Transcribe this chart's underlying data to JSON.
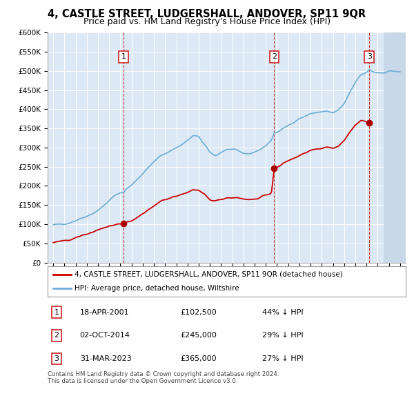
{
  "title": "4, CASTLE STREET, LUDGERSHALL, ANDOVER, SP11 9QR",
  "subtitle": "Price paid vs. HM Land Registry's House Price Index (HPI)",
  "title_fontsize": 10.5,
  "subtitle_fontsize": 9,
  "background_color": "#ffffff",
  "plot_bg_color": "#dce9f5",
  "grid_color": "#ffffff",
  "ylim": [
    0,
    600000
  ],
  "yticks": [
    0,
    50000,
    100000,
    150000,
    200000,
    250000,
    300000,
    350000,
    400000,
    450000,
    500000,
    550000,
    600000
  ],
  "hpi_line_color": "#6aadd5",
  "price_line_color": "#cc0000",
  "sale_marker_color": "#aa0000",
  "vline_color": "#cc2222",
  "legend_entries": [
    "4, CASTLE STREET, LUDGERSHALL, ANDOVER, SP11 9QR (detached house)",
    "HPI: Average price, detached house, Wiltshire"
  ],
  "table_data": [
    {
      "num": "1",
      "date": "18-APR-2001",
      "price": "£102,500",
      "hpi": "44% ↓ HPI"
    },
    {
      "num": "2",
      "date": "02-OCT-2014",
      "price": "£245,000",
      "hpi": "29% ↓ HPI"
    },
    {
      "num": "3",
      "date": "31-MAR-2023",
      "price": "£365,000",
      "hpi": "27% ↓ HPI"
    }
  ],
  "footnote": "Contains HM Land Registry data © Crown copyright and database right 2024.\nThis data is licensed under the Open Government Licence v3.0.",
  "xmin": 1994.5,
  "xmax": 2026.5,
  "hatched_region_start": 2024.5,
  "hatched_region_end": 2026.5,
  "sale1_x": 2001.3,
  "sale2_x": 2014.75,
  "sale3_x": 2023.25,
  "sale1_y": 102500,
  "sale2_y": 245000,
  "sale3_y": 365000
}
